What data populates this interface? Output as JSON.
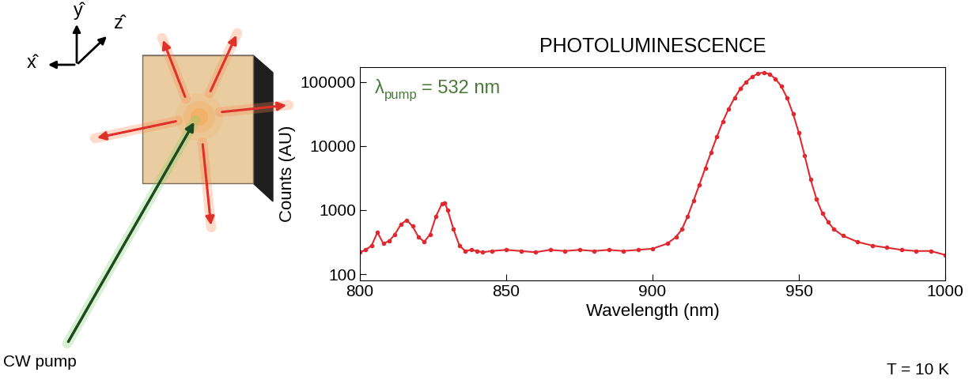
{
  "chart_data": {
    "type": "line",
    "title": "PHOTOLUMINESCENCE",
    "x_label": "Wavelength (nm)",
    "y_label": "Counts (AU)",
    "log": "y",
    "color": "#e0282e",
    "marker": "o",
    "line_style": "solid",
    "grid": false,
    "x": [
      800,
      802,
      804,
      806,
      808,
      810,
      812,
      814,
      816,
      818,
      820,
      822,
      824,
      826,
      828,
      829,
      830,
      832,
      834,
      836,
      838,
      840,
      842,
      845,
      850,
      855,
      860,
      865,
      870,
      875,
      880,
      885,
      890,
      895,
      900,
      905,
      908,
      910,
      912,
      914,
      916,
      918,
      920,
      922,
      924,
      926,
      928,
      930,
      932,
      934,
      936,
      938,
      940,
      942,
      944,
      946,
      948,
      950,
      952,
      954,
      956,
      958,
      960,
      962,
      965,
      970,
      975,
      980,
      985,
      990,
      995,
      1000
    ],
    "values": [
      220,
      240,
      280,
      450,
      300,
      330,
      420,
      600,
      700,
      560,
      380,
      320,
      420,
      800,
      1250,
      1300,
      1000,
      500,
      280,
      230,
      240,
      230,
      220,
      230,
      240,
      230,
      220,
      240,
      230,
      240,
      230,
      240,
      230,
      240,
      250,
      300,
      380,
      500,
      800,
      1400,
      2500,
      4500,
      8000,
      14000,
      24000,
      38000,
      56000,
      78000,
      100000,
      120000,
      135000,
      140000,
      132000,
      112000,
      85000,
      56000,
      32000,
      16000,
      7000,
      3000,
      1500,
      900,
      650,
      500,
      400,
      320,
      280,
      260,
      240,
      230,
      230,
      200
    ],
    "xlim": [
      800,
      1000
    ],
    "xticks": [
      800,
      850,
      900,
      950,
      1000
    ],
    "ylim": [
      80,
      170000
    ],
    "yticks": [
      100,
      1000,
      10000,
      100000
    ],
    "pump_annotation": {
      "symbol": "λ",
      "subscript": "pump",
      "text": "= 532 nm"
    },
    "temperature_note": "T = 10 K"
  },
  "diagram": {
    "axis_labels": [
      "x̂",
      "ŷ",
      "ẑ"
    ],
    "pump_label": "CW pump"
  }
}
